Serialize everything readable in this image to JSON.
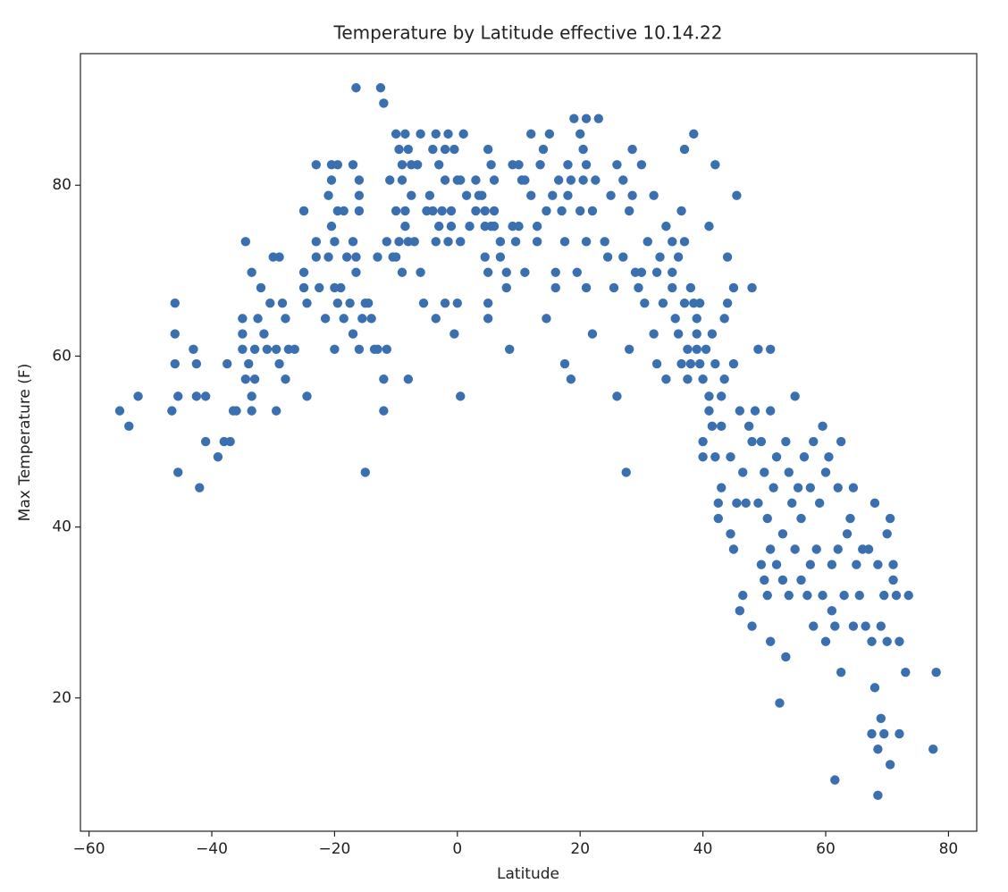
{
  "chart_data": {
    "type": "scatter",
    "title": "Temperature by Latitude effective 10.14.22",
    "x_label": "Latitude",
    "y_label": "Max Temperature (F)",
    "color": "#3a6fb0",
    "xlim": [
      -61.4,
      84.6
    ],
    "ylim": [
      4.4,
      95.4
    ],
    "xticks": [
      {
        "value": -60,
        "label": "−60"
      },
      {
        "value": -40,
        "label": "−40"
      },
      {
        "value": -20,
        "label": "−20"
      },
      0,
      20,
      40,
      60,
      80
    ],
    "yticks": [
      20,
      40,
      60,
      80
    ],
    "grid": false,
    "points": [
      [
        -55,
        53.6
      ],
      [
        -53.5,
        51.8
      ],
      [
        -52,
        55.3
      ],
      [
        -46.5,
        53.6
      ],
      [
        -46,
        59.1
      ],
      [
        -46,
        62.6
      ],
      [
        -46,
        66.2
      ],
      [
        -45.5,
        55.3
      ],
      [
        -45.5,
        46.4
      ],
      [
        -43,
        60.8
      ],
      [
        -42.5,
        59.1
      ],
      [
        -42.5,
        55.3
      ],
      [
        -42,
        44.6
      ],
      [
        -41,
        50
      ],
      [
        -41,
        55.3
      ],
      [
        -39,
        48.2
      ],
      [
        -38,
        50
      ],
      [
        -37.5,
        59.1
      ],
      [
        -37,
        50
      ],
      [
        -36.5,
        53.6
      ],
      [
        -36,
        53.6
      ],
      [
        -35,
        64.4
      ],
      [
        -35,
        62.6
      ],
      [
        -35,
        60.8
      ],
      [
        -34.5,
        73.4
      ],
      [
        -34.5,
        57.3
      ],
      [
        -34,
        59.1
      ],
      [
        -33.5,
        55.3
      ],
      [
        -33.5,
        53.6
      ],
      [
        -33.5,
        69.8
      ],
      [
        -33,
        60.8
      ],
      [
        -33,
        57.3
      ],
      [
        -32.5,
        64.4
      ],
      [
        -32,
        68
      ],
      [
        -31.5,
        62.6
      ],
      [
        -31,
        60.8
      ],
      [
        -30.5,
        66.2
      ],
      [
        -30,
        71.6
      ],
      [
        -29.5,
        53.6
      ],
      [
        -29.5,
        60.8
      ],
      [
        -29,
        59.1
      ],
      [
        -29,
        71.6
      ],
      [
        -28.5,
        66.2
      ],
      [
        -28,
        57.3
      ],
      [
        -28,
        64.4
      ],
      [
        -27.5,
        60.8
      ],
      [
        -26.5,
        60.8
      ],
      [
        -25,
        77
      ],
      [
        -25,
        69.8
      ],
      [
        -25,
        68
      ],
      [
        -24.5,
        55.3
      ],
      [
        -24.5,
        66.2
      ],
      [
        -23,
        82.4
      ],
      [
        -23,
        73.4
      ],
      [
        -23,
        71.6
      ],
      [
        -22.5,
        68
      ],
      [
        -21.5,
        64.4
      ],
      [
        -21,
        78.8
      ],
      [
        -21,
        71.6
      ],
      [
        -20.5,
        82.4
      ],
      [
        -20.5,
        80.6
      ],
      [
        -20.5,
        75.2
      ],
      [
        -20,
        68
      ],
      [
        -20,
        60.8
      ],
      [
        -20,
        73.4
      ],
      [
        -19.5,
        77
      ],
      [
        -19.5,
        66.2
      ],
      [
        -19.5,
        82.4
      ],
      [
        -19,
        68
      ],
      [
        -18.5,
        77
      ],
      [
        -18.5,
        64.4
      ],
      [
        -18,
        71.6
      ],
      [
        -17.5,
        66.2
      ],
      [
        -17,
        82.4
      ],
      [
        -17,
        73.4
      ],
      [
        -17,
        62.6
      ],
      [
        -16.5,
        71.6
      ],
      [
        -16.5,
        69.8
      ],
      [
        -16.5,
        91.4
      ],
      [
        -16,
        78.8
      ],
      [
        -16,
        80.6
      ],
      [
        -16,
        77
      ],
      [
        -16,
        60.8
      ],
      [
        -15.5,
        64.4
      ],
      [
        -15,
        46.4
      ],
      [
        -15,
        66.2
      ],
      [
        -14.5,
        66.2
      ],
      [
        -14,
        64.4
      ],
      [
        -13.5,
        60.8
      ],
      [
        -13,
        60.8
      ],
      [
        -13,
        71.6
      ],
      [
        -12.5,
        91.4
      ],
      [
        -12,
        89.6
      ],
      [
        -12,
        57.3
      ],
      [
        -12,
        53.6
      ],
      [
        -11.5,
        73.4
      ],
      [
        -11.5,
        60.8
      ],
      [
        -11,
        80.6
      ],
      [
        -10.5,
        71.6
      ],
      [
        -10,
        71.6
      ],
      [
        -10,
        77
      ],
      [
        -10,
        86
      ],
      [
        -9.5,
        84.2
      ],
      [
        -9.5,
        73.4
      ],
      [
        -9,
        82.4
      ],
      [
        -9,
        80.6
      ],
      [
        -9,
        69.8
      ],
      [
        -8.5,
        75.2
      ],
      [
        -8.5,
        86
      ],
      [
        -8.5,
        77
      ],
      [
        -8,
        84.2
      ],
      [
        -8,
        73.4
      ],
      [
        -8,
        57.3
      ],
      [
        -7.5,
        82.4
      ],
      [
        -7.5,
        78.8
      ],
      [
        -7,
        73.4
      ],
      [
        -6.5,
        82.4
      ],
      [
        -6,
        86
      ],
      [
        -6,
        69.8
      ],
      [
        -5.5,
        66.2
      ],
      [
        -5,
        77
      ],
      [
        -4.5,
        78.8
      ],
      [
        -4,
        77
      ],
      [
        -4,
        84.2
      ],
      [
        -3.5,
        86
      ],
      [
        -3.5,
        73.4
      ],
      [
        -3.5,
        64.4
      ],
      [
        -3,
        75.2
      ],
      [
        -3,
        82.4
      ],
      [
        -2.5,
        77
      ],
      [
        -2,
        80.6
      ],
      [
        -2,
        84.2
      ],
      [
        -2,
        66.2
      ],
      [
        -1.5,
        86
      ],
      [
        -1.5,
        73.4
      ],
      [
        -1,
        77
      ],
      [
        -1,
        75.2
      ],
      [
        -0.5,
        84.2
      ],
      [
        -0.5,
        62.6
      ],
      [
        0,
        80.6
      ],
      [
        0,
        66.2
      ],
      [
        0.5,
        55.3
      ],
      [
        0.5,
        80.6
      ],
      [
        0.5,
        73.4
      ],
      [
        1,
        86
      ],
      [
        1.5,
        78.8
      ],
      [
        2,
        75.2
      ],
      [
        3,
        80.6
      ],
      [
        3,
        77
      ],
      [
        3.5,
        78.8
      ],
      [
        4,
        78.8
      ],
      [
        4.5,
        77
      ],
      [
        4.5,
        75.2
      ],
      [
        4.5,
        71.6
      ],
      [
        5,
        84.2
      ],
      [
        5,
        69.8
      ],
      [
        5,
        66.2
      ],
      [
        5,
        64.4
      ],
      [
        5.5,
        82.4
      ],
      [
        5.5,
        75.2
      ],
      [
        6,
        80.6
      ],
      [
        6,
        77
      ],
      [
        6,
        75.2
      ],
      [
        7,
        73.4
      ],
      [
        7,
        71.6
      ],
      [
        8,
        69.8
      ],
      [
        8,
        68
      ],
      [
        8.5,
        60.8
      ],
      [
        9,
        75.2
      ],
      [
        9,
        82.4
      ],
      [
        9.5,
        73.4
      ],
      [
        10,
        82.4
      ],
      [
        10,
        75.2
      ],
      [
        10.5,
        80.6
      ],
      [
        11,
        80.6
      ],
      [
        11,
        69.8
      ],
      [
        12,
        78.8
      ],
      [
        12,
        86
      ],
      [
        13,
        73.4
      ],
      [
        13,
        75.2
      ],
      [
        13.5,
        82.4
      ],
      [
        14,
        84.2
      ],
      [
        14.5,
        64.4
      ],
      [
        14.5,
        77
      ],
      [
        15,
        86
      ],
      [
        15.5,
        78.8
      ],
      [
        16,
        69.8
      ],
      [
        16,
        68
      ],
      [
        16.5,
        80.6
      ],
      [
        17,
        77
      ],
      [
        17.5,
        73.4
      ],
      [
        17.5,
        59.1
      ],
      [
        18,
        82.4
      ],
      [
        18,
        78.8
      ],
      [
        18.5,
        57.3
      ],
      [
        18.5,
        80.6
      ],
      [
        19,
        87.8
      ],
      [
        19.5,
        69.8
      ],
      [
        20,
        77
      ],
      [
        20,
        86
      ],
      [
        20.5,
        84.2
      ],
      [
        20.5,
        80.6
      ],
      [
        21,
        87.8
      ],
      [
        21,
        82.4
      ],
      [
        21,
        73.4
      ],
      [
        21,
        68
      ],
      [
        22,
        77
      ],
      [
        22,
        62.6
      ],
      [
        22.5,
        80.6
      ],
      [
        23,
        87.8
      ],
      [
        24,
        73.4
      ],
      [
        24.5,
        71.6
      ],
      [
        25,
        78.8
      ],
      [
        25.5,
        68
      ],
      [
        26,
        82.4
      ],
      [
        26,
        55.3
      ],
      [
        27,
        80.6
      ],
      [
        27,
        71.6
      ],
      [
        27.5,
        46.4
      ],
      [
        28,
        77
      ],
      [
        28,
        60.8
      ],
      [
        28.5,
        84.2
      ],
      [
        28.5,
        78.8
      ],
      [
        29,
        69.8
      ],
      [
        29.5,
        68
      ],
      [
        30,
        82.4
      ],
      [
        30,
        69.8
      ],
      [
        30.5,
        66.2
      ],
      [
        31,
        73.4
      ],
      [
        32,
        78.8
      ],
      [
        32,
        62.6
      ],
      [
        32.5,
        69.8
      ],
      [
        32.5,
        59.1
      ],
      [
        33,
        71.6
      ],
      [
        33.5,
        66.2
      ],
      [
        34,
        57.3
      ],
      [
        34,
        75.2
      ],
      [
        35,
        73.4
      ],
      [
        35,
        69.8
      ],
      [
        35,
        68
      ],
      [
        35.5,
        64.4
      ],
      [
        36,
        62.6
      ],
      [
        36,
        71.6
      ],
      [
        36.5,
        59.1
      ],
      [
        36.5,
        77
      ],
      [
        37,
        84.2
      ],
      [
        37,
        73.4
      ],
      [
        37,
        66.2
      ],
      [
        37.5,
        60.8
      ],
      [
        37.5,
        57.3
      ],
      [
        38,
        68
      ],
      [
        38,
        59.1
      ],
      [
        38.5,
        86
      ],
      [
        38.5,
        66.2
      ],
      [
        39,
        64.4
      ],
      [
        39,
        62.6
      ],
      [
        39,
        60.8
      ],
      [
        39.5,
        59.1
      ],
      [
        39.5,
        66.2
      ],
      [
        40,
        50
      ],
      [
        40,
        48.2
      ],
      [
        40,
        57.3
      ],
      [
        40.5,
        60.8
      ],
      [
        41,
        55.3
      ],
      [
        41,
        53.6
      ],
      [
        41,
        75.2
      ],
      [
        41.5,
        51.8
      ],
      [
        41.5,
        62.6
      ],
      [
        42,
        48.2
      ],
      [
        42,
        59.1
      ],
      [
        42,
        82.4
      ],
      [
        42.5,
        42.8
      ],
      [
        42.5,
        41
      ],
      [
        43,
        55.3
      ],
      [
        43,
        44.6
      ],
      [
        43,
        51.8
      ],
      [
        43.5,
        64.4
      ],
      [
        43.5,
        57.3
      ],
      [
        44,
        71.6
      ],
      [
        44,
        66.2
      ],
      [
        44.5,
        39.2
      ],
      [
        44.5,
        48.2
      ],
      [
        45,
        59.1
      ],
      [
        45,
        37.4
      ],
      [
        45,
        68
      ],
      [
        45.5,
        78.8
      ],
      [
        45.5,
        42.8
      ],
      [
        46,
        53.6
      ],
      [
        46,
        30.2
      ],
      [
        46.5,
        46.4
      ],
      [
        46.5,
        32
      ],
      [
        47,
        42.8
      ],
      [
        47.5,
        51.8
      ],
      [
        48,
        50
      ],
      [
        48,
        68
      ],
      [
        48,
        28.4
      ],
      [
        48.5,
        53.6
      ],
      [
        49,
        42.8
      ],
      [
        49,
        60.8
      ],
      [
        49.5,
        35.6
      ],
      [
        49.5,
        50
      ],
      [
        50,
        33.8
      ],
      [
        50,
        46.4
      ],
      [
        50.5,
        41
      ],
      [
        50.5,
        32
      ],
      [
        51,
        37.4
      ],
      [
        51,
        53.6
      ],
      [
        51,
        26.6
      ],
      [
        51,
        60.8
      ],
      [
        51.5,
        44.6
      ],
      [
        52,
        35.6
      ],
      [
        52,
        48.2
      ],
      [
        52.5,
        19.4
      ],
      [
        53,
        39.2
      ],
      [
        53,
        33.8
      ],
      [
        53.5,
        24.8
      ],
      [
        53.5,
        50
      ],
      [
        54,
        46.4
      ],
      [
        54,
        32
      ],
      [
        54.5,
        42.8
      ],
      [
        55,
        55.3
      ],
      [
        55,
        37.4
      ],
      [
        55.5,
        44.6
      ],
      [
        56,
        41
      ],
      [
        56,
        33.8
      ],
      [
        56.5,
        48.2
      ],
      [
        57,
        32
      ],
      [
        57.5,
        35.6
      ],
      [
        57.5,
        44.6
      ],
      [
        58,
        50
      ],
      [
        58,
        28.4
      ],
      [
        58.5,
        37.4
      ],
      [
        59,
        42.8
      ],
      [
        59.5,
        51.8
      ],
      [
        59.5,
        32
      ],
      [
        60,
        46.4
      ],
      [
        60,
        26.6
      ],
      [
        60.5,
        48.2
      ],
      [
        61,
        30.2
      ],
      [
        61,
        35.6
      ],
      [
        61.5,
        10.4
      ],
      [
        61.5,
        28.4
      ],
      [
        62,
        44.6
      ],
      [
        62,
        37.4
      ],
      [
        62.5,
        50
      ],
      [
        62.5,
        23
      ],
      [
        63,
        32
      ],
      [
        63.5,
        39.2
      ],
      [
        64,
        41
      ],
      [
        64.5,
        44.6
      ],
      [
        64.5,
        28.4
      ],
      [
        65,
        35.6
      ],
      [
        65.5,
        32
      ],
      [
        66,
        37.4
      ],
      [
        66.5,
        28.4
      ],
      [
        67,
        37.4
      ],
      [
        67.5,
        15.8
      ],
      [
        67.5,
        26.6
      ],
      [
        68,
        42.8
      ],
      [
        68,
        21.2
      ],
      [
        68.5,
        14
      ],
      [
        68.5,
        35.6
      ],
      [
        68.5,
        8.6
      ],
      [
        69,
        28.4
      ],
      [
        69,
        17.6
      ],
      [
        69.5,
        32
      ],
      [
        69.5,
        15.8
      ],
      [
        70,
        39.2
      ],
      [
        70,
        26.6
      ],
      [
        70.5,
        41
      ],
      [
        70.5,
        12.2
      ],
      [
        71,
        35.6
      ],
      [
        71,
        33.8
      ],
      [
        71.5,
        32
      ],
      [
        72,
        15.8
      ],
      [
        72,
        26.6
      ],
      [
        73,
        23
      ],
      [
        73.5,
        32
      ],
      [
        77.5,
        14
      ],
      [
        78,
        23
      ]
    ]
  }
}
